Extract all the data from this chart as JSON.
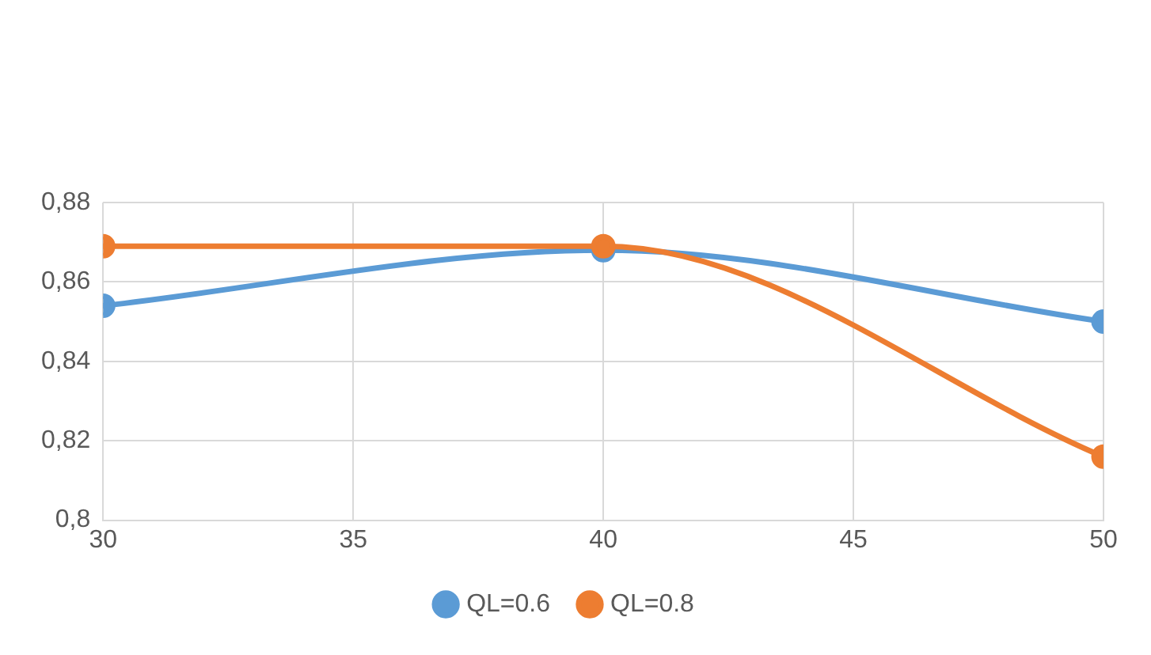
{
  "chart_data": {
    "type": "line",
    "x": [
      30,
      40,
      50
    ],
    "series": [
      {
        "name": "QL=0.6",
        "color": "#5b9bd5",
        "values": [
          0.854,
          0.868,
          0.85
        ]
      },
      {
        "name": "QL=0.8",
        "color": "#ed7d31",
        "values": [
          0.869,
          0.869,
          0.816
        ]
      }
    ],
    "xlim": [
      30,
      50
    ],
    "xticks": [
      30,
      35,
      40,
      45,
      50
    ],
    "ylim": [
      0.8,
      0.88
    ],
    "yticks": [
      {
        "value": 0.8,
        "label": "0,8"
      },
      {
        "value": 0.82,
        "label": "0,82"
      },
      {
        "value": 0.84,
        "label": "0,84"
      },
      {
        "value": 0.86,
        "label": "0,86"
      },
      {
        "value": 0.88,
        "label": "0,88"
      }
    ],
    "grid": true,
    "legend": "bottom",
    "marker": "circle",
    "line_style": "solid"
  }
}
